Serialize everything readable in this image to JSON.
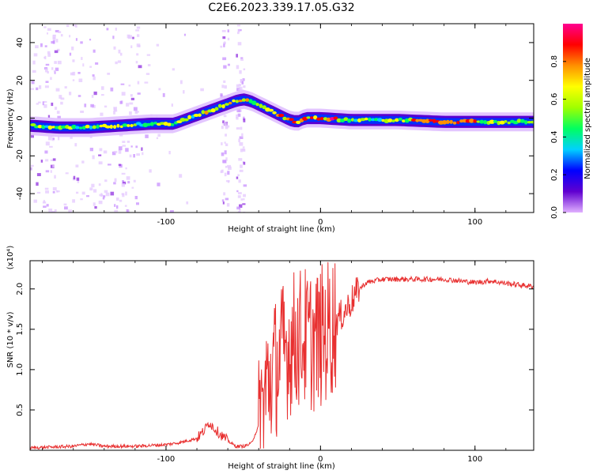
{
  "title": "C2E6.2023.339.17.05.G32",
  "colorbar": {
    "label": "Normalized spectral amplitude",
    "ticks": [
      "0.0",
      "0.2",
      "0.4",
      "0.6",
      "0.8"
    ],
    "tick_values": [
      0.0,
      0.2,
      0.4,
      0.6,
      0.8
    ],
    "range": [
      0,
      1
    ],
    "colors": [
      "#e0b0ff",
      "#6000d0",
      "#0000ff",
      "#00d0ff",
      "#00ff60",
      "#a0ff00",
      "#ffff00",
      "#ff9000",
      "#ff0000",
      "#ff0090"
    ]
  },
  "colors": {
    "snr_line": "#e83030",
    "axis": "#000000"
  },
  "chart_data": [
    {
      "type": "heatmap",
      "xlabel": "Height of straight line (km)",
      "ylabel": "Frequency (Hz)",
      "xlim": [
        -188,
        138
      ],
      "ylim": [
        -50,
        50
      ],
      "xticks": [
        -100,
        0,
        100
      ],
      "xtick_labels": [
        "-100",
        "0",
        "100"
      ],
      "yticks": [
        -40,
        -20,
        0,
        20,
        40
      ],
      "ytick_labels": [
        "-40",
        "-20",
        "0",
        "20",
        "40"
      ],
      "ridge": {
        "x": [
          -188,
          -170,
          -150,
          -130,
          -110,
          -95,
          -85,
          -75,
          -65,
          -55,
          -50,
          -45,
          -40,
          -35,
          -30,
          -25,
          -20,
          -15,
          -10,
          -5,
          0,
          20,
          50,
          80,
          100,
          120,
          138
        ],
        "y": [
          -4,
          -5,
          -5,
          -4,
          -3,
          -3,
          0,
          3,
          6,
          9,
          10,
          9,
          7,
          5,
          3,
          1,
          -1,
          -2,
          0,
          0,
          0,
          -1,
          -1,
          -2,
          -2,
          -2,
          -2
        ]
      }
    },
    {
      "type": "line",
      "xlabel": "Height of straight line (km)",
      "ylabel": "SNR (10 * v/v)",
      "scale_label": "(x10⁴)",
      "xlim": [
        -188,
        138
      ],
      "ylim": [
        0,
        2.35
      ],
      "xticks": [
        -100,
        0,
        100
      ],
      "xtick_labels": [
        "-100",
        "0",
        "100"
      ],
      "yticks": [
        0.5,
        1.0,
        1.5,
        2.0
      ],
      "ytick_labels": [
        "0.5",
        "1.0",
        "1.5",
        "2.0"
      ],
      "series": [
        {
          "name": "SNR",
          "x": [
            -188,
            -160,
            -150,
            -140,
            -120,
            -100,
            -90,
            -80,
            -75,
            -72,
            -70,
            -65,
            -60,
            -55,
            -50,
            -45,
            -40,
            -37,
            -35,
            -30,
            -25,
            -20,
            -15,
            -10,
            -5,
            0,
            5,
            10,
            15,
            20,
            25,
            30,
            40,
            60,
            80,
            100,
            110,
            120,
            138
          ],
          "y": [
            0.03,
            0.05,
            0.08,
            0.05,
            0.05,
            0.07,
            0.1,
            0.15,
            0.25,
            0.35,
            0.3,
            0.2,
            0.12,
            0.05,
            0.05,
            0.08,
            0.3,
            0.6,
            0.8,
            1.0,
            1.2,
            1.3,
            1.4,
            1.4,
            1.35,
            1.4,
            1.5,
            1.6,
            1.7,
            1.85,
            2.0,
            2.08,
            2.12,
            2.12,
            2.12,
            2.08,
            2.1,
            2.07,
            2.03
          ]
        }
      ]
    }
  ]
}
